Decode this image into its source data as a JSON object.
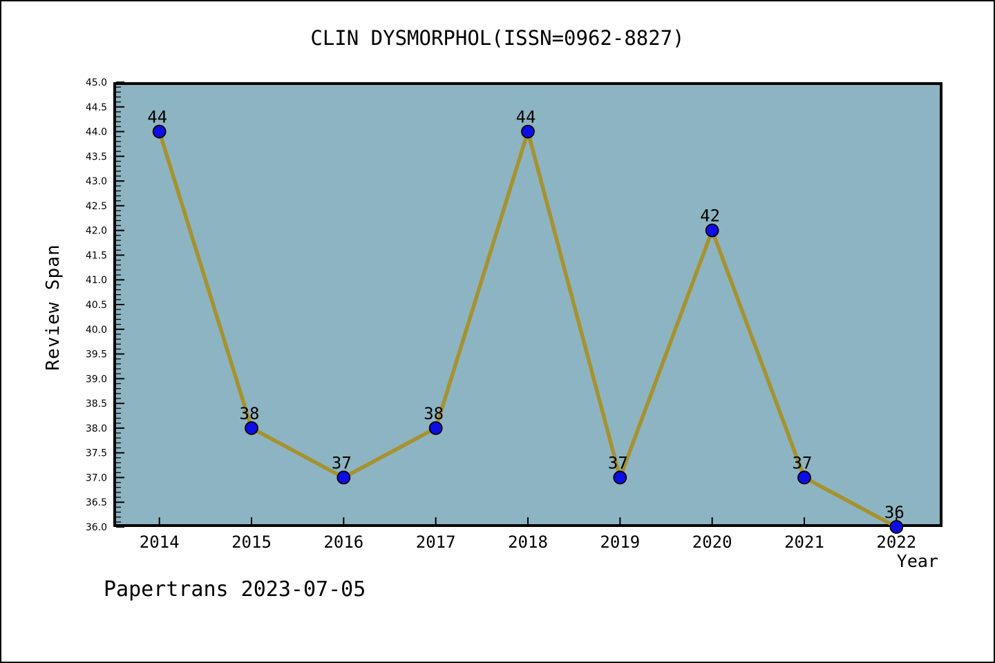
{
  "title": "CLIN DYSMORPHOL(ISSN=0962-8827)",
  "footer": "Papertrans 2023-07-05",
  "chart_data": {
    "type": "line",
    "title": "CLIN DYSMORPHOL(ISSN=0962-8827)",
    "xlabel": "Year",
    "ylabel": "Review Span",
    "categories": [
      "2014",
      "2015",
      "2016",
      "2017",
      "2018",
      "2019",
      "2020",
      "2021",
      "2022"
    ],
    "series": [
      {
        "name": "Review Span",
        "values": [
          44,
          38,
          37,
          38,
          44,
          37,
          42,
          37,
          36
        ]
      }
    ],
    "data_labels": [
      "44",
      "38",
      "37",
      "38",
      "44",
      "37",
      "42",
      "37",
      "36"
    ],
    "ylim": [
      36.0,
      45.0
    ],
    "ytick_major_step": 0.5,
    "ytick_minor_step": 0.1,
    "ytick_format_decimals": 1,
    "grid": "off",
    "legend": "none",
    "colors": {
      "plot_background": "#8db4c2",
      "line": "#a6922f",
      "marker_fill": "#0d0de8",
      "marker_edge": "#000000",
      "axis": "#000000",
      "text": "#000000",
      "page_background": "#ffffff",
      "outer_border": "#000000"
    }
  }
}
